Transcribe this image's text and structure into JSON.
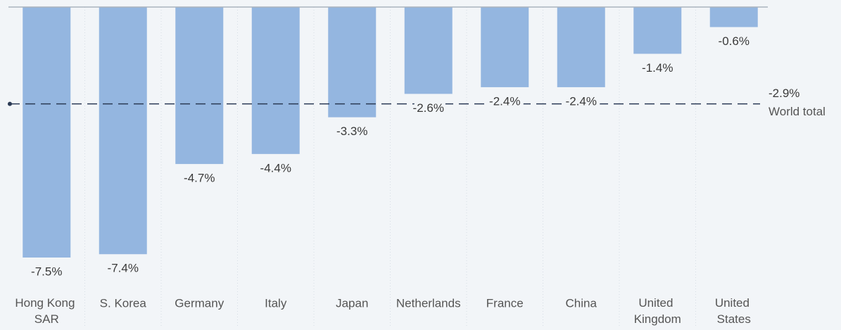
{
  "chart_data": {
    "type": "bar",
    "categories": [
      "Hong Kong SAR",
      "S. Korea",
      "Germany",
      "Italy",
      "Japan",
      "Netherlands",
      "France",
      "China",
      "United Kingdom",
      "United States"
    ],
    "values": [
      -7.5,
      -7.4,
      -4.7,
      -4.4,
      -3.3,
      -2.6,
      -2.4,
      -2.4,
      -1.4,
      -0.6
    ],
    "value_labels": [
      "-7.5%",
      "-7.4%",
      "-4.7%",
      "-4.4%",
      "-3.3%",
      "-2.6%",
      "-2.4%",
      "-2.4%",
      "-1.4%",
      "-0.6%"
    ],
    "color": "#94b6e0",
    "ylim": [
      -7.5,
      0
    ],
    "reference": {
      "value": -2.9,
      "value_label": "-2.9%",
      "label": "World total",
      "color": "#2b3a55"
    }
  }
}
